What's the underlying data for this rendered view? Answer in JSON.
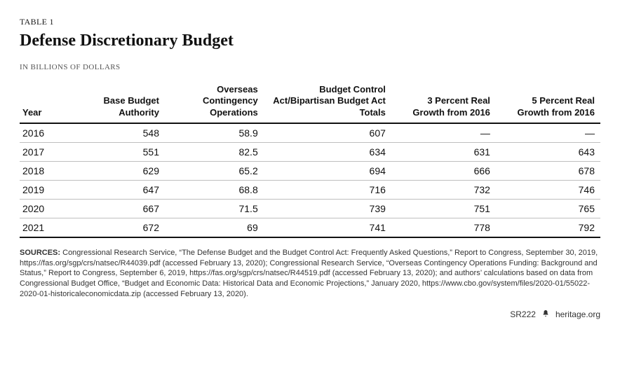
{
  "table_label": "TABLE 1",
  "title": "Defense Discretionary Budget",
  "subtitle": "IN BILLIONS OF DOLLARS",
  "columns": [
    {
      "label": "Year",
      "align": "left",
      "width": "9%"
    },
    {
      "label": "Base Budget Authority",
      "align": "right",
      "width": "16%"
    },
    {
      "label": "Overseas Contingency Operations",
      "align": "right",
      "width": "17%"
    },
    {
      "label": "Budget Control Act/Bipartisan Budget Act Totals",
      "align": "right",
      "width": "22%"
    },
    {
      "label": "3 Percent Real Growth from 2016",
      "align": "right",
      "width": "18%"
    },
    {
      "label": "5 Percent Real Growth from 2016",
      "align": "right",
      "width": "18%"
    }
  ],
  "rows": [
    [
      "2016",
      "548",
      "58.9",
      "607",
      "—",
      "—"
    ],
    [
      "2017",
      "551",
      "82.5",
      "634",
      "631",
      "643"
    ],
    [
      "2018",
      "629",
      "65.2",
      "694",
      "666",
      "678"
    ],
    [
      "2019",
      "647",
      "68.8",
      "716",
      "732",
      "746"
    ],
    [
      "2020",
      "667",
      "71.5",
      "739",
      "751",
      "765"
    ],
    [
      "2021",
      "672",
      "69",
      "741",
      "778",
      "792"
    ]
  ],
  "sources_label": "SOURCES:",
  "sources_text": " Congressional Research Service, “The Defense Budget and the Budget Control Act: Frequently Asked Questions,” Report to Congress, September 30, 2019, https://fas.org/sgp/crs/natsec/R44039.pdf (accessed February 13, 2020); Congressional Research Service, “Overseas Contingency Operations Funding: Background and Status,” Report to Congress, September 6, 2019, https://fas.org/sgp/crs/natsec/R44519.pdf (accessed February 13, 2020); and authors’ calculations based on data from Congressional Budget Office, “Budget and Economic Data: Historical Data and Economic Projections,” January 2020, https://www.cbo.gov/system/files/2020-01/55022-2020-01-historicaleconomicdata.zip (accessed February 13, 2020).",
  "footer_code": "SR222",
  "footer_site": "heritage.org",
  "colors": {
    "text": "#1a1a1a",
    "heading": "#111111",
    "subtitle": "#555555",
    "row_border": "#bfbfbf",
    "heavy_border": "#111111",
    "background": "#ffffff"
  },
  "fonts": {
    "title_family": "Georgia, serif",
    "body_family": "Arial, Helvetica, sans-serif",
    "title_size_pt": 18,
    "header_size_pt": 10,
    "cell_size_pt": 10,
    "sources_size_pt": 8
  }
}
